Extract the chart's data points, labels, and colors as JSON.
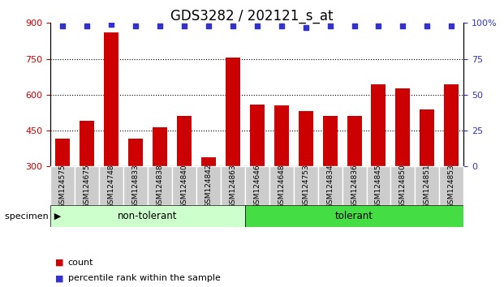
{
  "title": "GDS3282 / 202121_s_at",
  "categories": [
    "GSM124575",
    "GSM124675",
    "GSM124748",
    "GSM124833",
    "GSM124838",
    "GSM124840",
    "GSM124842",
    "GSM124863",
    "GSM124646",
    "GSM124648",
    "GSM124753",
    "GSM124834",
    "GSM124836",
    "GSM124845",
    "GSM124850",
    "GSM124851",
    "GSM124853"
  ],
  "bar_values": [
    415,
    490,
    860,
    415,
    465,
    510,
    340,
    755,
    560,
    555,
    530,
    510,
    510,
    645,
    625,
    540,
    645
  ],
  "percentile_values": [
    98,
    98,
    99,
    98,
    98,
    98,
    98,
    98,
    98,
    98,
    97,
    98,
    98,
    98,
    98,
    98,
    98
  ],
  "bar_color": "#cc0000",
  "dot_color": "#3333cc",
  "non_tolerant_count": 8,
  "non_tolerant_label": "non-tolerant",
  "tolerant_label": "tolerant",
  "specimen_label": "specimen",
  "ylim_left": [
    300,
    900
  ],
  "ylim_right": [
    0,
    100
  ],
  "yticks_left": [
    300,
    450,
    600,
    750,
    900
  ],
  "yticks_right": [
    0,
    25,
    50,
    75,
    100
  ],
  "grid_ticks": [
    450,
    600,
    750
  ],
  "non_tolerant_color": "#ccffcc",
  "tolerant_color": "#44dd44",
  "tick_label_bg_color": "#cccccc",
  "legend_count_color": "#cc0000",
  "legend_pct_color": "#3333cc",
  "title_fontsize": 12,
  "tick_fontsize": 8,
  "bar_width": 0.6
}
